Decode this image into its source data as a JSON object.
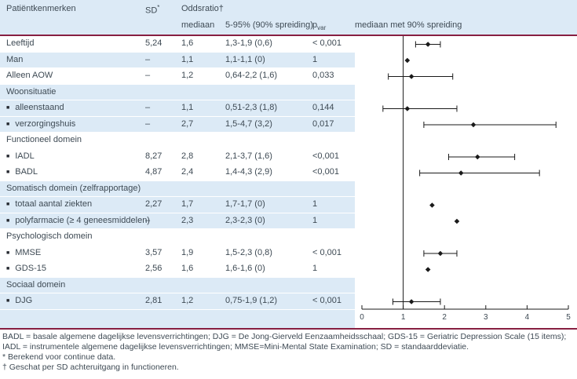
{
  "colors": {
    "accent_line": "#871f41",
    "shaded_row": "#dceaf6",
    "text": "#3e4a54",
    "plot_ink": "#1a1a1a"
  },
  "header": {
    "col_patient": "Patiëntkenmerken",
    "col_sd": "SD",
    "col_sd_sup": "*",
    "col_or": "Oddsratio†",
    "col_median": "mediaan",
    "col_ci": "5-95% (90% spreiding)",
    "col_p": "p",
    "col_p_sub": "var",
    "col_plot": "mediaan met 90% spreiding"
  },
  "table": {
    "bullet": "■",
    "rows": [
      {
        "type": "row",
        "shaded": false,
        "label": "Leeftijd",
        "sd": "5,24",
        "median": "1,6",
        "ci": "1,3-1,9 (0,6)",
        "p": "< 0,001"
      },
      {
        "type": "row",
        "shaded": true,
        "label": "Man",
        "sd": "–",
        "median": "1,1",
        "ci": "1,1-1,1 (0)",
        "p": "1"
      },
      {
        "type": "row",
        "shaded": false,
        "label": "Alleen AOW",
        "sd": "–",
        "median": "1,2",
        "ci": "0,64-2,2 (1,6)",
        "p": "0,033"
      },
      {
        "type": "section",
        "shaded": true,
        "label": "Woonsituatie"
      },
      {
        "type": "item",
        "shaded": true,
        "label": "alleenstaand",
        "sd": "–",
        "median": "1,1",
        "ci": "0,51-2,3 (1,8)",
        "p": "0,144"
      },
      {
        "type": "item",
        "shaded": true,
        "label": "verzorgingshuis",
        "sd": "–",
        "median": "2,7",
        "ci": "1,5-4,7 (3,2)",
        "p": "0,017"
      },
      {
        "type": "section",
        "shaded": false,
        "label": "Functioneel domein"
      },
      {
        "type": "item",
        "shaded": false,
        "label": "IADL",
        "sd": "8,27",
        "median": "2,8",
        "ci": "2,1-3,7 (1,6)",
        "p": "<0,001"
      },
      {
        "type": "item",
        "shaded": false,
        "label": "BADL",
        "sd": "4,87",
        "median": "2,4",
        "ci": "1,4-4,3 (2,9)",
        "p": "<0,001"
      },
      {
        "type": "section",
        "shaded": true,
        "label": "Somatisch domein (zelfrapportage)"
      },
      {
        "type": "item",
        "shaded": true,
        "label": "totaal aantal ziekten",
        "sd": "2,27",
        "median": "1,7",
        "ci": "1,7-1,7 (0)",
        "p": "1"
      },
      {
        "type": "item",
        "shaded": true,
        "label": "polyfarmacie (≥ 4 geneesmiddelen)",
        "sd": "–",
        "median": "2,3",
        "ci": "2,3-2,3 (0)",
        "p": "1"
      },
      {
        "type": "section",
        "shaded": false,
        "label": "Psychologisch domein"
      },
      {
        "type": "item",
        "shaded": false,
        "label": "MMSE",
        "sd": "3,57",
        "median": "1,9",
        "ci": "1,5-2,3 (0,8)",
        "p": "< 0,001"
      },
      {
        "type": "item",
        "shaded": false,
        "label": "GDS-15",
        "sd": "2,56",
        "median": "1,6",
        "ci": "1,6-1,6 (0)",
        "p": "1"
      },
      {
        "type": "section",
        "shaded": true,
        "label": "Sociaal domein"
      },
      {
        "type": "item",
        "shaded": true,
        "label": "DJG",
        "sd": "2,81",
        "median": "1,2",
        "ci": "0,75-1,9 (1,2)",
        "p": "< 0,001"
      }
    ]
  },
  "chart_data": {
    "type": "forest",
    "title": "mediaan met 90% spreiding",
    "xlabel": "",
    "xlim": [
      0,
      5
    ],
    "x_ticks": [
      0,
      1,
      2,
      3,
      4,
      5
    ],
    "reference_line": 1,
    "rows": [
      {
        "label": "Leeftijd",
        "median": 1.6,
        "lo": 1.3,
        "hi": 1.9,
        "row": 0
      },
      {
        "label": "Man",
        "median": 1.1,
        "lo": 1.1,
        "hi": 1.1,
        "row": 1
      },
      {
        "label": "Alleen AOW",
        "median": 1.2,
        "lo": 0.64,
        "hi": 2.2,
        "row": 2
      },
      {
        "label": "alleenstaand",
        "median": 1.1,
        "lo": 0.51,
        "hi": 2.3,
        "row": 4
      },
      {
        "label": "verzorgingshuis",
        "median": 2.7,
        "lo": 1.5,
        "hi": 4.7,
        "row": 5
      },
      {
        "label": "IADL",
        "median": 2.8,
        "lo": 2.1,
        "hi": 3.7,
        "row": 7
      },
      {
        "label": "BADL",
        "median": 2.4,
        "lo": 1.4,
        "hi": 4.3,
        "row": 8
      },
      {
        "label": "totaal aantal ziekten",
        "median": 1.7,
        "lo": 1.7,
        "hi": 1.7,
        "row": 10
      },
      {
        "label": "polyfarmacie (≥ 4 geneesmiddelen)",
        "median": 2.3,
        "lo": 2.3,
        "hi": 2.3,
        "row": 11
      },
      {
        "label": "MMSE",
        "median": 1.9,
        "lo": 1.5,
        "hi": 2.3,
        "row": 13
      },
      {
        "label": "GDS-15",
        "median": 1.6,
        "lo": 1.6,
        "hi": 1.6,
        "row": 14
      },
      {
        "label": "DJG",
        "median": 1.2,
        "lo": 0.75,
        "hi": 1.9,
        "row": 16
      }
    ]
  },
  "footnotes": {
    "abbreviations": "BADL = basale algemene dagelijkse levensverrichtingen; DJG = De Jong-Gierveld Eenzaamheidsschaal; GDS-15 = Geriatric Depression Scale (15 items); IADL = instrumentele algemene dagelijkse levensverrichtingen; MMSE=Mini-Mental State Examination; SD = standaarddeviatie.",
    "note_star": "* Berekend voor continue data.",
    "note_dagger": "† Geschat per SD achteruitgang in functioneren."
  }
}
